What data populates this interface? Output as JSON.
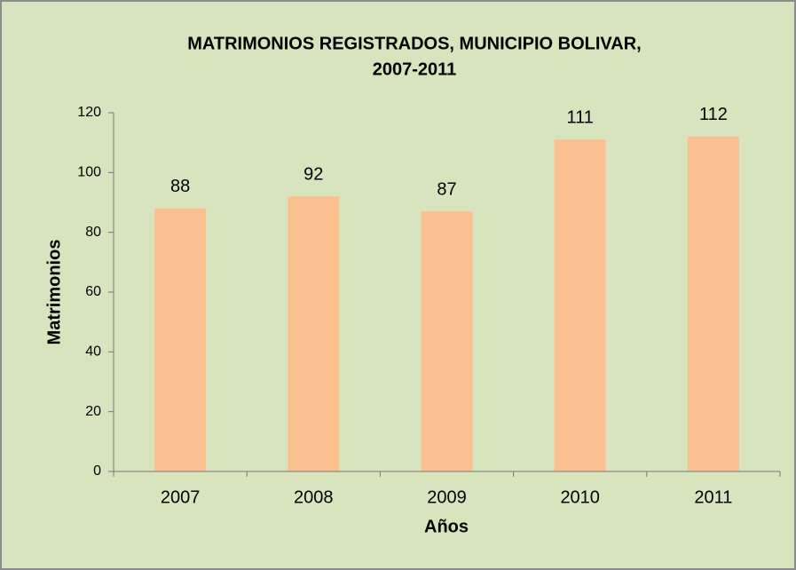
{
  "chart_data": {
    "type": "bar",
    "title": [
      "MATRIMONIOS REGISTRADOS, MUNICIPIO BOLIVAR,",
      "2007-2011"
    ],
    "x_label": "Años",
    "y_label": "Matrimonios",
    "categories": [
      "2007",
      "2008",
      "2009",
      "2010",
      "2011"
    ],
    "values": [
      88,
      92,
      87,
      111,
      112
    ],
    "color": "#fac090",
    "ylim": [
      0,
      120
    ],
    "yticks": [
      0,
      20,
      40,
      60,
      80,
      100,
      120
    ],
    "grid": false,
    "data_labels": true
  }
}
